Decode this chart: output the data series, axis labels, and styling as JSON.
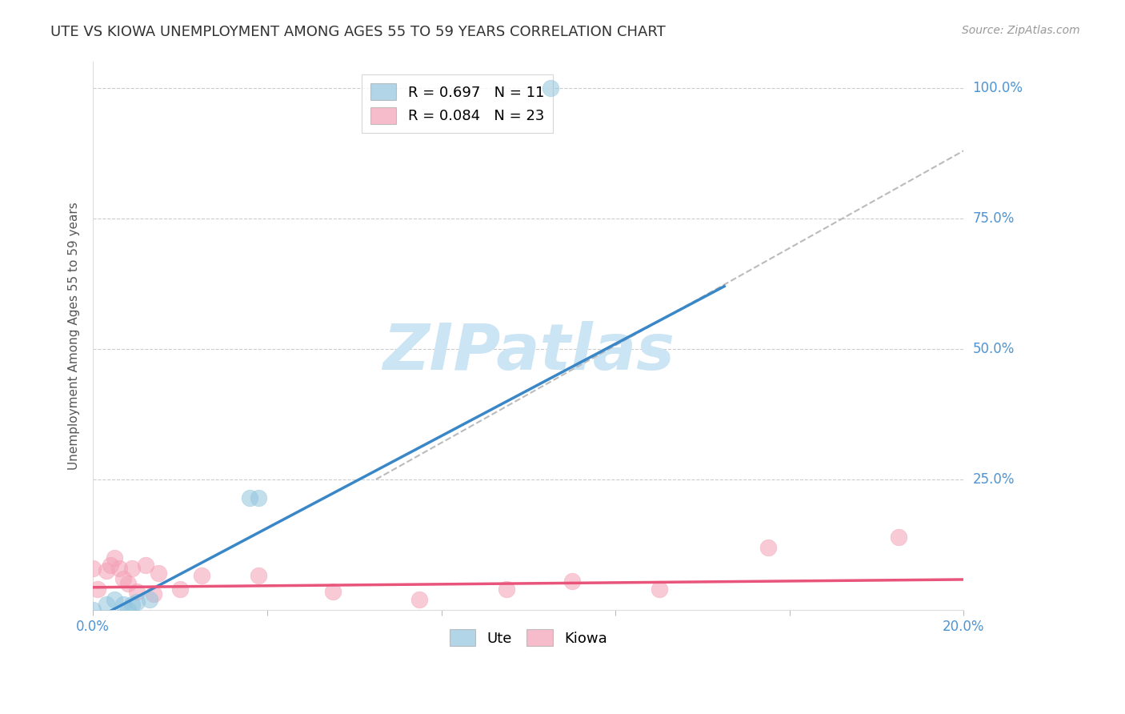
{
  "title": "UTE VS KIOWA UNEMPLOYMENT AMONG AGES 55 TO 59 YEARS CORRELATION CHART",
  "source": "Source: ZipAtlas.com",
  "ylabel_label": "Unemployment Among Ages 55 to 59 years",
  "xlim": [
    0.0,
    0.2
  ],
  "ylim": [
    0.0,
    1.05
  ],
  "xticks": [
    0.0,
    0.04,
    0.08,
    0.12,
    0.16,
    0.2
  ],
  "xtick_labels": [
    "0.0%",
    "",
    "",
    "",
    "",
    "20.0%"
  ],
  "yticks": [
    0.0,
    0.25,
    0.5,
    0.75,
    1.0
  ],
  "ytick_right_labels": [
    "",
    "25.0%",
    "50.0%",
    "75.0%",
    "100.0%"
  ],
  "ute_R": 0.697,
  "ute_N": 11,
  "kiowa_R": 0.084,
  "kiowa_N": 23,
  "ute_color": "#92c5de",
  "kiowa_color": "#f4a0b5",
  "ute_line_color": "#3a87c8",
  "kiowa_line_color": "#e8547a",
  "ref_line_color": "#bbbbbb",
  "background_color": "#ffffff",
  "grid_color": "#cccccc",
  "watermark_color": "#cce5f5",
  "axis_label_color": "#4d94d4",
  "title_color": "#333333",
  "source_color": "#999999",
  "ylabel_color": "#555555",
  "ute_points_x": [
    0.0,
    0.003,
    0.005,
    0.007,
    0.008,
    0.009,
    0.01,
    0.013,
    0.036,
    0.038,
    0.105
  ],
  "ute_points_y": [
    0.0,
    0.01,
    0.02,
    0.01,
    0.0,
    0.01,
    0.015,
    0.02,
    0.215,
    0.215,
    1.0
  ],
  "kiowa_points_x": [
    0.0,
    0.001,
    0.003,
    0.004,
    0.005,
    0.006,
    0.007,
    0.008,
    0.009,
    0.01,
    0.012,
    0.014,
    0.015,
    0.02,
    0.025,
    0.038,
    0.055,
    0.075,
    0.095,
    0.11,
    0.13,
    0.155,
    0.185
  ],
  "kiowa_points_y": [
    0.08,
    0.04,
    0.075,
    0.085,
    0.1,
    0.08,
    0.06,
    0.05,
    0.08,
    0.035,
    0.085,
    0.03,
    0.07,
    0.04,
    0.065,
    0.065,
    0.035,
    0.02,
    0.04,
    0.055,
    0.04,
    0.12,
    0.14
  ],
  "ute_line_x0": 0.0,
  "ute_line_y0": -0.02,
  "ute_line_x1": 0.145,
  "ute_line_y1": 0.62,
  "kiowa_line_x0": 0.0,
  "kiowa_line_y0": 0.043,
  "kiowa_line_x1": 0.2,
  "kiowa_line_y1": 0.058,
  "ref_line_x0": 0.065,
  "ref_line_y0": 0.25,
  "ref_line_x1": 0.2,
  "ref_line_y1": 0.88,
  "title_fontsize": 13,
  "axis_label_fontsize": 11,
  "tick_fontsize": 12,
  "legend_fontsize": 13,
  "source_fontsize": 10,
  "watermark_fontsize": 58
}
